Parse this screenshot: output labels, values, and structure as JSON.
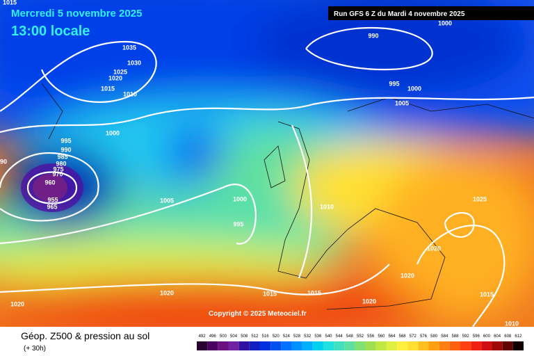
{
  "header": {
    "date": "Mercredi 5 novembre 2025",
    "time": "13:00 locale",
    "run": "Run GFS 6 Z du Mardi 4 novembre 2025"
  },
  "footer": {
    "title": "Géop. Z500 & pression au sol",
    "subtitle": "(+ 30h)",
    "copyright": "Copyright © 2025 Meteociel.fr"
  },
  "isobars": {
    "labels": [
      "1015",
      "1035",
      "1030",
      "1025",
      "1020",
      "1015",
      "1010",
      "1000",
      "995",
      "990",
      "985",
      "980",
      "975",
      "970",
      "960",
      "955",
      "965",
      "90",
      "1005",
      "1000",
      "995",
      "1010",
      "990",
      "1000",
      "995",
      "1000",
      "1005",
      "1025",
      "1020",
      "1020",
      "1015",
      "1015",
      "1020",
      "1020",
      "1020",
      "1015",
      "1010"
    ]
  },
  "scale": {
    "values": [
      492,
      496,
      500,
      504,
      508,
      512,
      516,
      520,
      524,
      528,
      532,
      536,
      540,
      544,
      548,
      552,
      556,
      560,
      564,
      568,
      572,
      576,
      580,
      584,
      588,
      592,
      596,
      600,
      604,
      608,
      612
    ],
    "colors": [
      "#2a0030",
      "#4a0060",
      "#6a1080",
      "#7020a0",
      "#3010a0",
      "#1020c0",
      "#0030e0",
      "#0050f0",
      "#0070ff",
      "#0090ff",
      "#00b0ff",
      "#00d0f0",
      "#20e0e0",
      "#40e0c0",
      "#60e0a0",
      "#80e070",
      "#a0e050",
      "#c0e840",
      "#e0f040",
      "#fff040",
      "#ffe030",
      "#ffc020",
      "#ffa010",
      "#ff8010",
      "#ff6010",
      "#ff4010",
      "#f02010",
      "#d01010",
      "#a00808",
      "#600404",
      "#100000"
    ]
  }
}
